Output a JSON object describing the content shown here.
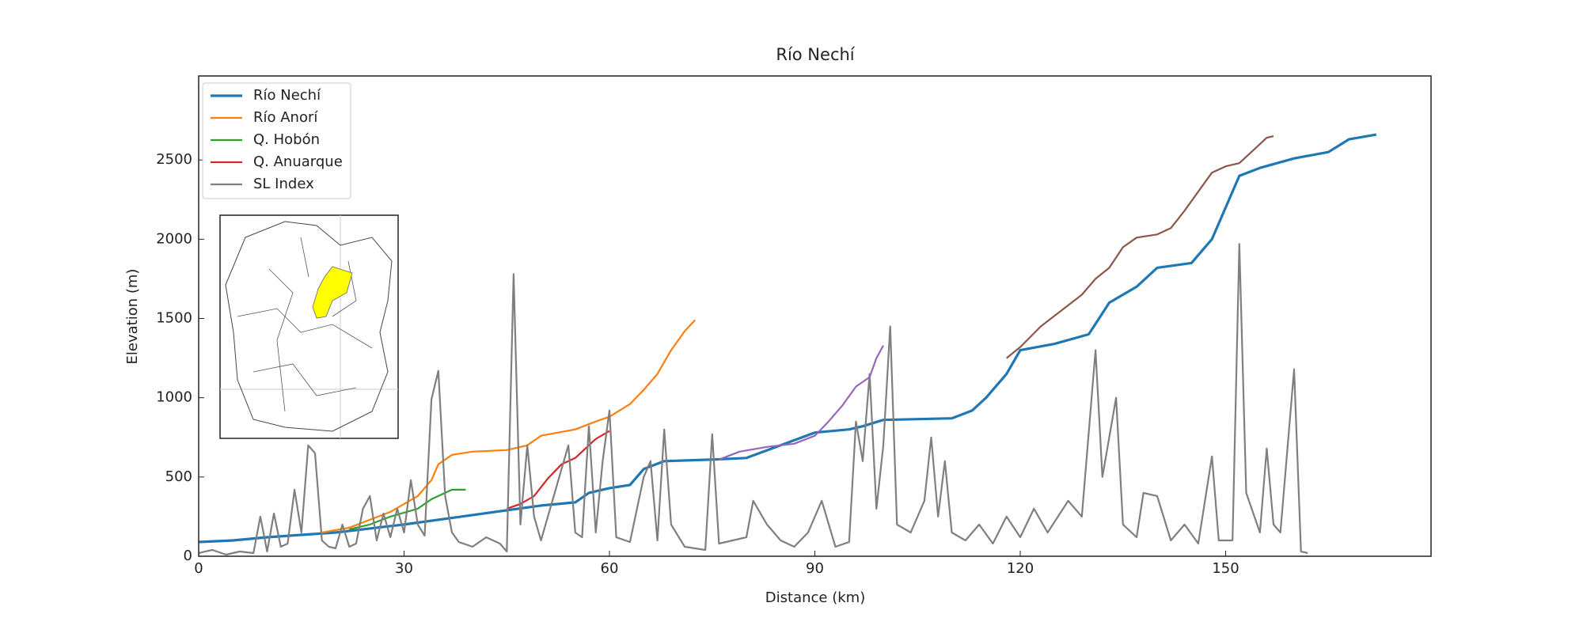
{
  "chart_data": {
    "type": "line",
    "title": "Río Nechí",
    "x_label": "Distance (km)",
    "y_label": "Elevation (m)",
    "xlim": [
      0,
      180
    ],
    "ylim": [
      0,
      3030
    ],
    "xticks": [
      0,
      30,
      60,
      90,
      120,
      150
    ],
    "yticks": [
      0,
      500,
      1000,
      1500,
      2000,
      2500
    ],
    "legend": "upper left",
    "series": [
      {
        "name": "Río Nechí",
        "color": "#1f77b4",
        "x": [
          0,
          5,
          10,
          20,
          30,
          40,
          45,
          50,
          55,
          57,
          60,
          63,
          65,
          68,
          75,
          80,
          85,
          90,
          95,
          97,
          100,
          110,
          113,
          115,
          118,
          120,
          125,
          130,
          133,
          137,
          140,
          145,
          148,
          150,
          152,
          155,
          160,
          165,
          168,
          172
        ],
        "values": [
          90,
          100,
          120,
          150,
          200,
          260,
          290,
          320,
          340,
          400,
          430,
          450,
          550,
          600,
          610,
          620,
          700,
          780,
          800,
          820,
          860,
          870,
          920,
          1000,
          1150,
          1300,
          1340,
          1400,
          1600,
          1700,
          1820,
          1850,
          2000,
          2200,
          2400,
          2450,
          2510,
          2550,
          2630,
          2660
        ]
      },
      {
        "name": "Río Anorí",
        "color": "#ff7f0e",
        "x": [
          18,
          22,
          25,
          28,
          30,
          32,
          34,
          35,
          37,
          40,
          45,
          48,
          50,
          55,
          58,
          60,
          63,
          65,
          67,
          69,
          71,
          72.5
        ],
        "values": [
          150,
          180,
          230,
          280,
          330,
          380,
          480,
          580,
          640,
          660,
          670,
          700,
          760,
          800,
          850,
          880,
          960,
          1050,
          1150,
          1300,
          1420,
          1490
        ]
      },
      {
        "name": "Q. Hobón",
        "color": "#2ca02c",
        "x": [
          22,
          25,
          28,
          32,
          34,
          36,
          37,
          39
        ],
        "values": [
          170,
          200,
          250,
          300,
          360,
          400,
          420,
          420
        ]
      },
      {
        "name": "Q. Anuarque",
        "color": "#d62728",
        "x": [
          45,
          47,
          49,
          51,
          53,
          55,
          57,
          58,
          60
        ],
        "values": [
          300,
          330,
          380,
          490,
          580,
          620,
          700,
          740,
          790
        ]
      },
      {
        "name": "SL Index",
        "color": "#7f7f7f",
        "x": [
          0,
          2,
          4,
          6,
          8,
          9,
          10,
          11,
          12,
          13,
          14,
          15,
          16,
          17,
          18,
          19,
          20,
          21,
          22,
          23,
          24,
          25,
          26,
          27,
          28,
          29,
          30,
          31,
          32,
          33,
          34,
          35,
          36,
          37,
          38,
          40,
          42,
          44,
          45,
          46,
          47,
          48,
          49,
          50,
          52,
          54,
          55,
          56,
          57,
          58,
          59,
          60,
          61,
          63,
          65,
          66,
          67,
          68,
          69,
          71,
          74,
          75,
          76,
          80,
          81,
          83,
          85,
          87,
          89,
          91,
          93,
          95,
          96,
          97,
          98,
          99,
          100,
          101,
          102,
          104,
          106,
          107,
          108,
          109,
          110,
          112,
          114,
          116,
          118,
          120,
          122,
          124,
          127,
          129,
          131,
          132,
          134,
          135,
          137,
          138,
          140,
          142,
          144,
          146,
          148,
          149,
          151,
          152,
          153,
          155,
          156,
          157,
          158,
          160,
          161,
          162
        ],
        "values": [
          20,
          40,
          10,
          30,
          20,
          250,
          30,
          270,
          60,
          80,
          420,
          150,
          700,
          650,
          100,
          60,
          50,
          200,
          60,
          80,
          300,
          380,
          100,
          270,
          120,
          300,
          150,
          480,
          200,
          130,
          990,
          1170,
          380,
          150,
          90,
          60,
          120,
          80,
          30,
          1780,
          200,
          700,
          250,
          100,
          400,
          700,
          150,
          120,
          820,
          150,
          600,
          920,
          120,
          90,
          500,
          600,
          100,
          800,
          200,
          60,
          40,
          770,
          80,
          120,
          350,
          200,
          100,
          60,
          150,
          350,
          60,
          90,
          850,
          600,
          1150,
          300,
          700,
          1450,
          200,
          150,
          350,
          750,
          250,
          600,
          150,
          100,
          200,
          80,
          250,
          120,
          300,
          150,
          350,
          250,
          1300,
          500,
          1000,
          200,
          120,
          400,
          380,
          100,
          200,
          80,
          630,
          100,
          100,
          1970,
          400,
          150,
          680,
          200,
          150,
          1180,
          30,
          20
        ]
      },
      {
        "color": "#9467bd",
        "x": [
          76,
          79,
          83,
          87,
          90,
          92,
          94,
          96,
          98,
          99,
          100
        ],
        "values": [
          610,
          660,
          690,
          710,
          760,
          850,
          950,
          1070,
          1130,
          1250,
          1330
        ]
      },
      {
        "color": "#8c564b",
        "x": [
          118,
          120,
          123,
          126,
          129,
          131,
          133,
          135,
          137,
          140,
          142,
          144,
          146,
          148,
          150,
          152,
          154,
          156,
          157
        ],
        "values": [
          1250,
          1320,
          1450,
          1550,
          1650,
          1750,
          1820,
          1950,
          2010,
          2030,
          2070,
          2180,
          2300,
          2420,
          2460,
          2480,
          2560,
          2640,
          2650
        ]
      }
    ]
  }
}
